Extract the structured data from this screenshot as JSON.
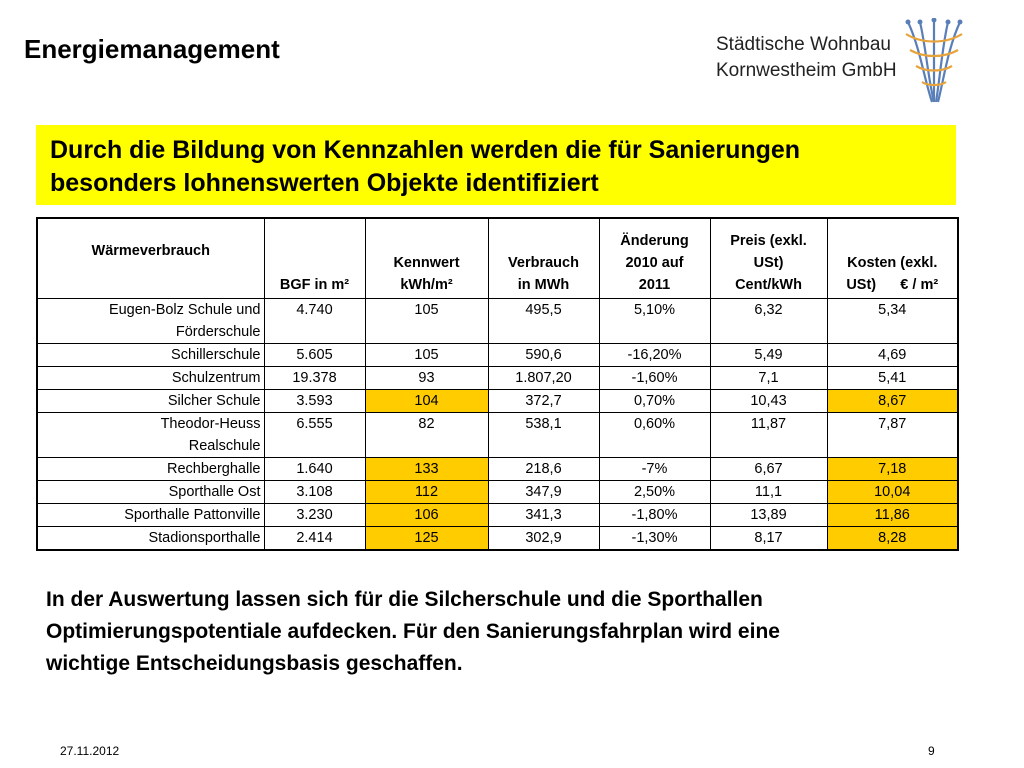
{
  "header": {
    "title": "Energiemanagement",
    "brand_line1": "Städtische Wohnbau",
    "brand_line2": "Kornwestheim GmbH"
  },
  "banner": {
    "line1": "Durch die Bildung von Kennzahlen werden die für Sanierungen",
    "line2": "besonders lohnenswerten Objekte identifiziert"
  },
  "table": {
    "headers": [
      [
        "Wärmeverbrauch"
      ],
      [
        "BGF in m²"
      ],
      [
        "Kennwert",
        "kWh/m²"
      ],
      [
        "Verbrauch",
        "in MWh"
      ],
      [
        "Änderung",
        "2010 auf",
        "2011"
      ],
      [
        "Preis (exkl.",
        "USt)",
        "Cent/kWh"
      ],
      [
        "Kosten (exkl.",
        "USt)      € / m²"
      ]
    ],
    "rows": [
      {
        "name": [
          "Eugen-Bolz Schule und",
          "Förderschule"
        ],
        "bgf": "4.740",
        "kennwert": "105",
        "verbrauch": "495,5",
        "aenderung": "5,10%",
        "preis": "6,32",
        "kosten": "5,34",
        "hl_kennwert": false,
        "hl_kosten": false
      },
      {
        "name": [
          "Schillerschule"
        ],
        "bgf": "5.605",
        "kennwert": "105",
        "verbrauch": "590,6",
        "aenderung": "-16,20%",
        "preis": "5,49",
        "kosten": "4,69",
        "hl_kennwert": false,
        "hl_kosten": false
      },
      {
        "name": [
          "Schulzentrum"
        ],
        "bgf": "19.378",
        "kennwert": "93",
        "verbrauch": "1.807,20",
        "aenderung": "-1,60%",
        "preis": "7,1",
        "kosten": "5,41",
        "hl_kennwert": false,
        "hl_kosten": false
      },
      {
        "name": [
          "Silcher Schule"
        ],
        "bgf": "3.593",
        "kennwert": "104",
        "verbrauch": "372,7",
        "aenderung": "0,70%",
        "preis": "10,43",
        "kosten": "8,67",
        "hl_kennwert": true,
        "hl_kosten": true
      },
      {
        "name": [
          "Theodor-Heuss",
          "Realschule"
        ],
        "bgf": "6.555",
        "kennwert": "82",
        "verbrauch": "538,1",
        "aenderung": "0,60%",
        "preis": "11,87",
        "kosten": "7,87",
        "hl_kennwert": false,
        "hl_kosten": false
      },
      {
        "name": [
          "Rechberghalle"
        ],
        "bgf": "1.640",
        "kennwert": "133",
        "verbrauch": "218,6",
        "aenderung": "-7%",
        "preis": "6,67",
        "kosten": "7,18",
        "hl_kennwert": true,
        "hl_kosten": true
      },
      {
        "name": [
          "Sporthalle Ost"
        ],
        "bgf": "3.108",
        "kennwert": "112",
        "verbrauch": "347,9",
        "aenderung": "2,50%",
        "preis": "11,1",
        "kosten": "10,04",
        "hl_kennwert": true,
        "hl_kosten": true
      },
      {
        "name": [
          "Sporthalle Pattonville"
        ],
        "bgf": "3.230",
        "kennwert": "106",
        "verbrauch": "341,3",
        "aenderung": "-1,80%",
        "preis": "13,89",
        "kosten": "11,86",
        "hl_kennwert": true,
        "hl_kosten": true
      },
      {
        "name": [
          "Stadionsporthalle"
        ],
        "bgf": "2.414",
        "kennwert": "125",
        "verbrauch": "302,9",
        "aenderung": "-1,30%",
        "preis": "8,17",
        "kosten": "8,28",
        "hl_kennwert": true,
        "hl_kosten": true
      }
    ]
  },
  "conclusion": {
    "line1": "In der Auswertung lassen sich für die Silcherschule und die Sporthallen",
    "line2": "Optimierungspotentiale aufdecken. Für den Sanierungsfahrplan wird eine",
    "line3": "wichtige Entscheidungsbasis geschaffen."
  },
  "footer": {
    "date": "27.11.2012",
    "page": "9"
  },
  "colors": {
    "banner": "#ffff00",
    "highlight": "#ffcc00",
    "logo_blue": "#5a7fb8",
    "logo_orange": "#e8a33a"
  },
  "icons": {
    "logo": "woven-basket-logo-icon"
  }
}
